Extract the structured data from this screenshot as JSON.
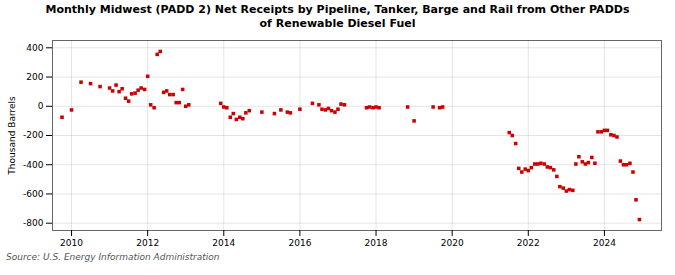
{
  "chart_data": {
    "type": "scatter",
    "title": "Monthly Midwest (PADD 2) Net Receipts by Pipeline, Tanker, Barge and Rail from Other PADDs\nof Renewable Diesel Fuel",
    "ylabel": "Thousand Barrels",
    "source": "Source: U.S. Energy Information Administration",
    "color": "#cc0000",
    "marker": "square",
    "grid": true,
    "xlim": [
      2009.5,
      2025.5
    ],
    "ylim": [
      -850,
      450
    ],
    "xticks": [
      2010,
      2012,
      2014,
      2016,
      2018,
      2020,
      2022,
      2024
    ],
    "yticks": [
      -800,
      -600,
      -400,
      -200,
      0,
      200,
      400
    ],
    "x": [
      2009.75,
      2010.0,
      2010.25,
      2010.5,
      2010.75,
      2011.0,
      2011.08,
      2011.17,
      2011.25,
      2011.33,
      2011.42,
      2011.5,
      2011.58,
      2011.67,
      2011.75,
      2011.83,
      2011.92,
      2012.0,
      2012.08,
      2012.17,
      2012.25,
      2012.33,
      2012.42,
      2012.5,
      2012.58,
      2012.67,
      2012.75,
      2012.83,
      2012.92,
      2013.0,
      2013.08,
      2013.92,
      2014.0,
      2014.08,
      2014.17,
      2014.25,
      2014.33,
      2014.42,
      2014.5,
      2014.58,
      2014.67,
      2015.0,
      2015.33,
      2015.5,
      2015.67,
      2015.75,
      2016.0,
      2016.33,
      2016.5,
      2016.58,
      2016.67,
      2016.75,
      2016.83,
      2016.92,
      2017.0,
      2017.08,
      2017.17,
      2017.75,
      2017.83,
      2017.92,
      2018.0,
      2018.08,
      2018.83,
      2019.0,
      2019.5,
      2019.67,
      2019.75,
      2021.5,
      2021.58,
      2021.67,
      2021.75,
      2021.83,
      2021.92,
      2022.0,
      2022.08,
      2022.17,
      2022.25,
      2022.33,
      2022.42,
      2022.5,
      2022.58,
      2022.67,
      2022.75,
      2022.83,
      2022.92,
      2023.0,
      2023.08,
      2023.17,
      2023.25,
      2023.33,
      2023.42,
      2023.5,
      2023.58,
      2023.67,
      2023.75,
      2023.83,
      2023.92,
      2024.0,
      2024.08,
      2024.17,
      2024.25,
      2024.33,
      2024.42,
      2024.5,
      2024.58,
      2024.67,
      2024.75,
      2024.83,
      2024.92
    ],
    "values": [
      -75,
      -25,
      165,
      155,
      135,
      125,
      105,
      145,
      100,
      120,
      55,
      35,
      85,
      90,
      110,
      125,
      115,
      205,
      10,
      -10,
      355,
      375,
      95,
      105,
      80,
      80,
      25,
      25,
      115,
      0,
      10,
      20,
      -5,
      -10,
      -75,
      -50,
      -90,
      -75,
      -85,
      -45,
      -30,
      -40,
      -50,
      -25,
      -40,
      -45,
      -20,
      20,
      10,
      -20,
      -25,
      -15,
      -30,
      -40,
      -20,
      15,
      10,
      -10,
      -5,
      -10,
      -5,
      -10,
      -5,
      -100,
      -5,
      -10,
      -5,
      -180,
      -200,
      -255,
      -425,
      -450,
      -430,
      -440,
      -420,
      -395,
      -395,
      -390,
      -395,
      -415,
      -420,
      -435,
      -480,
      -550,
      -560,
      -580,
      -570,
      -575,
      -395,
      -345,
      -380,
      -395,
      -385,
      -350,
      -390,
      -175,
      -175,
      -165,
      -165,
      -195,
      -200,
      -210,
      -375,
      -400,
      -400,
      -390,
      -450,
      -640,
      -775
    ]
  }
}
